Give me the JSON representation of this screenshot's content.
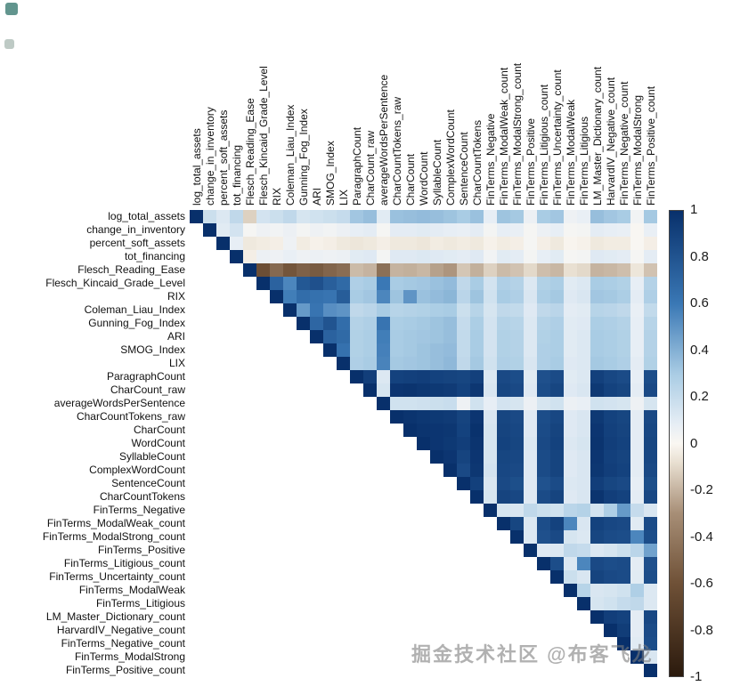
{
  "figure": {
    "background": "#ffffff"
  },
  "watermark": {
    "text": "掘金技术社区 @布客飞龙",
    "color": "#8a8a8a"
  },
  "icons": [
    {
      "name": "corner-badge-icon",
      "color": "#47837a"
    },
    {
      "name": "corner-dot-icon",
      "color": "#aebdb7"
    }
  ],
  "chart_data": {
    "type": "heatmap",
    "subtype": "correlation-matrix-upper-triangle",
    "title": "",
    "xlabel": "",
    "ylabel": "",
    "value_range": [
      -1,
      1
    ],
    "grid": false,
    "legend_position": "right-colorbar",
    "variables": [
      "log_total_assets",
      "change_in_inventory",
      "percent_soft_assets",
      "tot_financing",
      "Flesch_Reading_Ease",
      "Flesch_Kincaid_Grade_Level",
      "RIX",
      "Coleman_Liau_Index",
      "Gunning_Fog_Index",
      "ARI",
      "SMOG_Index",
      "LIX",
      "ParagraphCount",
      "CharCount_raw",
      "averageWordsPerSentence",
      "CharCountTokens_raw",
      "CharCount",
      "WordCount",
      "SyllableCount",
      "ComplexWordCount",
      "SentenceCount",
      "CharCountTokens",
      "FinTerms_Negative",
      "FinTerms_ModalWeak_count",
      "FinTerms_ModalStrong_count",
      "FinTerms_Positive",
      "FinTerms_Litigious_count",
      "FinTerms_Uncertainty_count",
      "FinTerms_ModalWeak",
      "FinTerms_Litigious",
      "LM_Master_Dictionary_count",
      "HarvardIV_Negative_count",
      "FinTerms_Negative_count",
      "FinTerms_ModalStrong",
      "FinTerms_Positive_count"
    ],
    "matrix_upper": [
      [
        1,
        0.18,
        0.12,
        0.22,
        -0.12,
        0.15,
        0.18,
        0.22,
        0.14,
        0.16,
        0.18,
        0.2,
        0.32,
        0.35,
        0.1,
        0.34,
        0.35,
        0.36,
        0.35,
        0.33,
        0.3,
        0.34,
        0.08,
        0.33,
        0.31,
        0.06,
        0.3,
        0.32,
        0.05,
        0.07,
        0.35,
        0.32,
        0.3,
        0.04,
        0.31
      ],
      [
        1,
        0.1,
        0.15,
        0.02,
        0.05,
        0.04,
        0.06,
        0.03,
        0.05,
        0.04,
        0.06,
        0.08,
        0.09,
        0.02,
        0.09,
        0.09,
        0.1,
        0.09,
        0.08,
        0.07,
        0.09,
        0.03,
        0.08,
        0.07,
        0.02,
        0.06,
        0.08,
        0.02,
        0.03,
        0.09,
        0.08,
        0.07,
        0.01,
        0.07
      ],
      [
        1,
        0.08,
        -0.05,
        -0.04,
        -0.03,
        0.05,
        -0.04,
        -0.02,
        -0.03,
        -0.05,
        -0.06,
        -0.05,
        -0.03,
        -0.05,
        -0.05,
        -0.06,
        -0.04,
        -0.05,
        -0.04,
        -0.05,
        -0.02,
        -0.04,
        -0.03,
        0.02,
        -0.03,
        -0.05,
        -0.01,
        -0.02,
        -0.05,
        -0.04,
        -0.04,
        0.01,
        -0.03
      ],
      [
        1,
        -0.03,
        0.06,
        0.05,
        0.07,
        0.05,
        0.06,
        0.05,
        0.06,
        0.1,
        0.11,
        0.03,
        0.11,
        0.11,
        0.12,
        0.11,
        0.1,
        0.09,
        0.11,
        0.04,
        0.1,
        0.09,
        0.03,
        0.08,
        0.1,
        0.02,
        0.03,
        0.11,
        0.1,
        0.09,
        0.02,
        0.09
      ],
      [
        1,
        -0.62,
        -0.48,
        -0.58,
        -0.52,
        -0.55,
        -0.5,
        -0.46,
        -0.18,
        -0.2,
        -0.45,
        -0.2,
        -0.21,
        -0.19,
        -0.25,
        -0.28,
        -0.15,
        -0.21,
        -0.12,
        -0.18,
        -0.16,
        -0.1,
        -0.17,
        -0.19,
        -0.08,
        -0.1,
        -0.2,
        -0.19,
        -0.17,
        -0.06,
        -0.16
      ],
      [
        1,
        0.72,
        0.55,
        0.78,
        0.82,
        0.74,
        0.68,
        0.28,
        0.3,
        0.6,
        0.3,
        0.31,
        0.32,
        0.34,
        0.36,
        0.22,
        0.3,
        0.15,
        0.28,
        0.26,
        0.12,
        0.27,
        0.29,
        0.1,
        0.12,
        0.3,
        0.29,
        0.27,
        0.08,
        0.26
      ],
      [
        1,
        0.58,
        0.66,
        0.64,
        0.62,
        0.75,
        0.3,
        0.32,
        0.55,
        0.33,
        0.5,
        0.34,
        0.36,
        0.38,
        0.24,
        0.33,
        0.16,
        0.3,
        0.28,
        0.13,
        0.29,
        0.31,
        0.11,
        0.13,
        0.32,
        0.31,
        0.29,
        0.09,
        0.28
      ],
      [
        1,
        0.48,
        0.62,
        0.52,
        0.5,
        0.22,
        0.24,
        0.3,
        0.25,
        0.26,
        0.27,
        0.29,
        0.3,
        0.18,
        0.25,
        0.14,
        0.22,
        0.21,
        0.11,
        0.22,
        0.24,
        0.09,
        0.1,
        0.25,
        0.24,
        0.22,
        0.07,
        0.21
      ],
      [
        1,
        0.7,
        0.8,
        0.66,
        0.26,
        0.28,
        0.62,
        0.29,
        0.3,
        0.31,
        0.33,
        0.35,
        0.2,
        0.29,
        0.15,
        0.26,
        0.25,
        0.12,
        0.26,
        0.28,
        0.1,
        0.11,
        0.29,
        0.28,
        0.26,
        0.08,
        0.25
      ],
      [
        1,
        0.72,
        0.68,
        0.27,
        0.29,
        0.58,
        0.3,
        0.31,
        0.32,
        0.33,
        0.35,
        0.21,
        0.3,
        0.15,
        0.27,
        0.26,
        0.12,
        0.27,
        0.29,
        0.1,
        0.12,
        0.3,
        0.29,
        0.27,
        0.08,
        0.26
      ],
      [
        1,
        0.64,
        0.27,
        0.29,
        0.57,
        0.3,
        0.31,
        0.33,
        0.35,
        0.36,
        0.21,
        0.3,
        0.15,
        0.27,
        0.26,
        0.12,
        0.28,
        0.29,
        0.1,
        0.12,
        0.3,
        0.29,
        0.27,
        0.08,
        0.26
      ],
      [
        1,
        0.28,
        0.3,
        0.56,
        0.31,
        0.32,
        0.33,
        0.35,
        0.37,
        0.22,
        0.31,
        0.16,
        0.28,
        0.27,
        0.13,
        0.28,
        0.3,
        0.11,
        0.12,
        0.31,
        0.3,
        0.28,
        0.09,
        0.27
      ],
      [
        1,
        0.92,
        0.12,
        0.9,
        0.91,
        0.92,
        0.9,
        0.89,
        0.88,
        0.91,
        0.12,
        0.86,
        0.84,
        0.1,
        0.82,
        0.85,
        0.1,
        0.12,
        0.91,
        0.87,
        0.85,
        0.08,
        0.84
      ],
      [
        1,
        0.14,
        0.97,
        0.98,
        0.96,
        0.95,
        0.94,
        0.9,
        0.96,
        0.13,
        0.88,
        0.86,
        0.11,
        0.84,
        0.88,
        0.11,
        0.13,
        0.95,
        0.9,
        0.88,
        0.09,
        0.86
      ],
      [
        1,
        0.16,
        0.16,
        0.17,
        0.18,
        0.19,
        0.05,
        0.16,
        0.08,
        0.15,
        0.14,
        0.06,
        0.14,
        0.16,
        0.06,
        0.07,
        0.16,
        0.15,
        0.14,
        0.05,
        0.14
      ],
      [
        1,
        0.98,
        0.96,
        0.95,
        0.94,
        0.89,
        0.97,
        0.13,
        0.88,
        0.86,
        0.11,
        0.84,
        0.87,
        0.11,
        0.13,
        0.95,
        0.9,
        0.88,
        0.09,
        0.86
      ],
      [
        1,
        0.98,
        0.97,
        0.96,
        0.9,
        0.99,
        0.14,
        0.89,
        0.87,
        0.11,
        0.85,
        0.89,
        0.11,
        0.13,
        0.97,
        0.91,
        0.89,
        0.09,
        0.87
      ],
      [
        1,
        0.97,
        0.95,
        0.92,
        0.98,
        0.14,
        0.9,
        0.88,
        0.12,
        0.86,
        0.9,
        0.12,
        0.14,
        0.98,
        0.92,
        0.9,
        0.09,
        0.88
      ],
      [
        1,
        0.97,
        0.89,
        0.97,
        0.14,
        0.88,
        0.87,
        0.11,
        0.85,
        0.89,
        0.11,
        0.13,
        0.97,
        0.91,
        0.89,
        0.09,
        0.87
      ],
      [
        1,
        0.86,
        0.96,
        0.15,
        0.87,
        0.86,
        0.11,
        0.85,
        0.89,
        0.11,
        0.13,
        0.96,
        0.92,
        0.9,
        0.09,
        0.86
      ],
      [
        1,
        0.91,
        0.13,
        0.86,
        0.83,
        0.11,
        0.81,
        0.85,
        0.12,
        0.13,
        0.92,
        0.88,
        0.86,
        0.08,
        0.83
      ],
      [
        1,
        0.14,
        0.89,
        0.87,
        0.11,
        0.85,
        0.89,
        0.11,
        0.13,
        0.98,
        0.92,
        0.9,
        0.09,
        0.87
      ],
      [
        1,
        0.14,
        0.13,
        0.22,
        0.18,
        0.16,
        0.24,
        0.26,
        0.15,
        0.28,
        0.48,
        0.2,
        0.13
      ],
      [
        1,
        0.88,
        0.12,
        0.84,
        0.9,
        0.55,
        0.13,
        0.9,
        0.87,
        0.86,
        0.1,
        0.85
      ],
      [
        1,
        0.12,
        0.82,
        0.86,
        0.14,
        0.12,
        0.88,
        0.85,
        0.84,
        0.55,
        0.84
      ],
      [
        1,
        0.11,
        0.12,
        0.22,
        0.2,
        0.12,
        0.14,
        0.18,
        0.24,
        0.45
      ],
      [
        1,
        0.84,
        0.12,
        0.55,
        0.86,
        0.84,
        0.85,
        0.09,
        0.82
      ],
      [
        1,
        0.18,
        0.13,
        0.89,
        0.86,
        0.85,
        0.1,
        0.84
      ],
      [
        1,
        0.25,
        0.13,
        0.14,
        0.16,
        0.28,
        0.12
      ],
      [
        1,
        0.14,
        0.16,
        0.2,
        0.22,
        0.12
      ],
      [
        1,
        0.92,
        0.9,
        0.09,
        0.87
      ],
      [
        1,
        0.93,
        0.09,
        0.85
      ],
      [
        1,
        0.1,
        0.84
      ],
      [
        1,
        0.13
      ],
      [
        1
      ]
    ],
    "colormap": [
      {
        "v": -1,
        "c": "#2b1a0d"
      },
      {
        "v": -0.6,
        "c": "#6f5137"
      },
      {
        "v": -0.3,
        "c": "#a78e76"
      },
      {
        "v": -0.08,
        "c": "#e9e0d2"
      },
      {
        "v": 0,
        "c": "#faf7f2"
      },
      {
        "v": 0.08,
        "c": "#e7eef5"
      },
      {
        "v": 0.3,
        "c": "#a9cce4"
      },
      {
        "v": 0.6,
        "c": "#3a78b5"
      },
      {
        "v": 1,
        "c": "#08306b"
      }
    ],
    "colorbar": {
      "position": "right",
      "ticks": [
        "1",
        "0.8",
        "0.6",
        "0.4",
        "0.2",
        "0",
        "-0.2",
        "-0.4",
        "-0.6",
        "-0.8",
        "-1"
      ]
    }
  }
}
